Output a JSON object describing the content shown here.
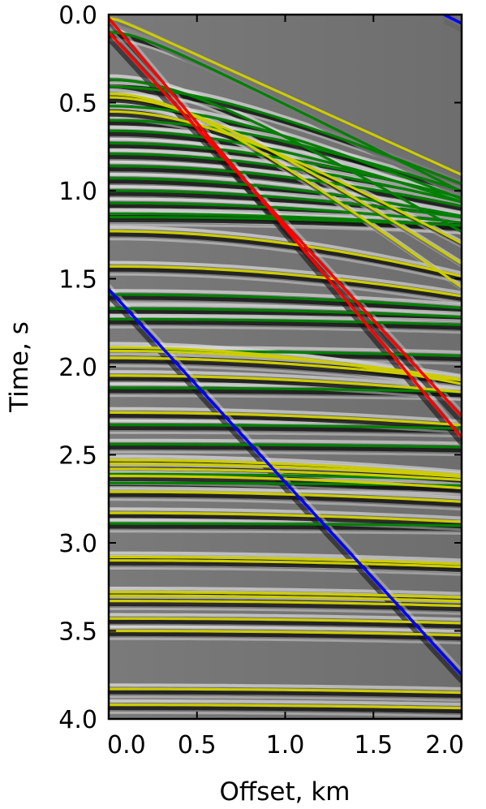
{
  "chart_data": {
    "type": "line",
    "title": "",
    "xlabel": "Offset, km",
    "ylabel": "Time, s",
    "xlim": [
      0.0,
      2.0
    ],
    "ylim": [
      4.0,
      0.0
    ],
    "y_inverted": true,
    "xticks": [
      "0.0",
      "0.5",
      "1.0",
      "1.5",
      "2.0"
    ],
    "yticks": [
      "0.0",
      "0.5",
      "1.0",
      "1.5",
      "2.0",
      "2.5",
      "3.0",
      "3.5",
      "4.0"
    ],
    "grid": false,
    "legend": "none",
    "background": "grayscale seismic gather",
    "colors": {
      "linear_red": "#ff0000",
      "linear_blue": "#0000ff",
      "hyperbola_green": "#008000",
      "hyperbola_yellow": "#cccc00",
      "background_gray": "#7a7a7a",
      "event_dark": "#161616",
      "event_light": "#e0e0e0"
    },
    "linear_series": [
      {
        "color": "red",
        "x": [
          0.0,
          2.0
        ],
        "y": [
          0.02,
          2.4
        ]
      },
      {
        "color": "red",
        "x": [
          0.0,
          2.0
        ],
        "y": [
          0.1,
          2.28
        ]
      },
      {
        "color": "blue",
        "x": [
          0.0,
          2.0
        ],
        "y": [
          1.56,
          3.75
        ]
      },
      {
        "color": "blue",
        "x": [
          1.9,
          2.0
        ],
        "y": [
          0.0,
          0.05
        ]
      }
    ],
    "hyperbola_series": {
      "green": [
        {
          "t0": 0.1,
          "v": 2.0
        },
        {
          "t0": 0.37,
          "v": 1.7
        },
        {
          "t0": 0.41,
          "v": 2.3
        },
        {
          "t0": 0.52,
          "v": 2.2
        },
        {
          "t0": 0.6,
          "v": 2.5
        },
        {
          "t0": 0.66,
          "v": 2.4
        },
        {
          "t0": 0.73,
          "v": 2.7
        },
        {
          "t0": 0.79,
          "v": 2.8
        },
        {
          "t0": 0.86,
          "v": 3.0
        },
        {
          "t0": 0.93,
          "v": 3.0
        },
        {
          "t0": 1.0,
          "v": 3.5
        },
        {
          "t0": 1.07,
          "v": 4.0
        },
        {
          "t0": 1.13,
          "v": 5.0
        },
        {
          "t0": 1.15,
          "v": 6.0
        },
        {
          "t0": 1.59,
          "v": 4.0
        },
        {
          "t0": 1.67,
          "v": 5.0
        },
        {
          "t0": 1.73,
          "v": 6.0
        },
        {
          "t0": 1.91,
          "v": 6.0
        },
        {
          "t0": 2.12,
          "v": 6.5
        },
        {
          "t0": 2.33,
          "v": 6.5
        },
        {
          "t0": 2.44,
          "v": 7.0
        },
        {
          "t0": 2.61,
          "v": 5.0
        },
        {
          "t0": 2.66,
          "v": 7.0
        },
        {
          "t0": 2.89,
          "v": 7.5
        }
      ],
      "yellow": [
        {
          "t0": 0.02,
          "v": 2.2
        },
        {
          "t0": 0.45,
          "v": 1.35
        },
        {
          "t0": 0.47,
          "v": 1.5
        },
        {
          "t0": 0.55,
          "v": 1.7
        },
        {
          "t0": 1.23,
          "v": 2.4
        },
        {
          "t0": 1.43,
          "v": 2.8
        },
        {
          "t0": 1.89,
          "v": 2.2
        },
        {
          "t0": 1.91,
          "v": 2.5
        },
        {
          "t0": 1.95,
          "v": 2.8
        },
        {
          "t0": 2.05,
          "v": 3.2
        },
        {
          "t0": 2.26,
          "v": 3.5
        },
        {
          "t0": 2.53,
          "v": 3.0
        },
        {
          "t0": 2.55,
          "v": 3.2
        },
        {
          "t0": 2.58,
          "v": 3.5
        },
        {
          "t0": 2.62,
          "v": 3.3
        },
        {
          "t0": 2.71,
          "v": 3.6
        },
        {
          "t0": 2.83,
          "v": 3.7
        },
        {
          "t0": 3.08,
          "v": 4.0
        },
        {
          "t0": 3.1,
          "v": 4.2
        },
        {
          "t0": 3.28,
          "v": 4.5
        },
        {
          "t0": 3.3,
          "v": 4.4
        },
        {
          "t0": 3.33,
          "v": 4.6
        },
        {
          "t0": 3.43,
          "v": 4.7
        },
        {
          "t0": 3.5,
          "v": 4.8
        },
        {
          "t0": 3.83,
          "v": 5.0
        },
        {
          "t0": 3.92,
          "v": 5.2
        }
      ]
    }
  }
}
